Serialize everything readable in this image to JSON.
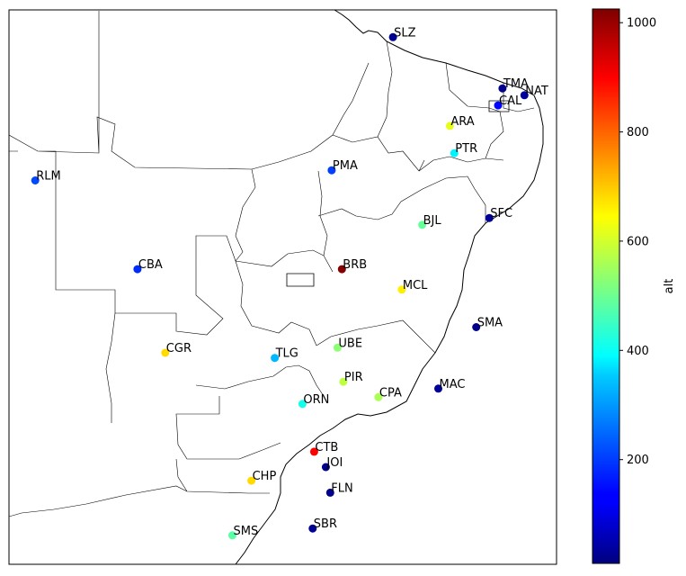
{
  "chart_data": {
    "type": "scatter",
    "title": "",
    "xlabel": "",
    "ylabel": "",
    "xlim": [
      -70.5,
      -33.0
    ],
    "ylim": [
      -33.5,
      -1.0
    ],
    "grid": false,
    "points": [
      {
        "label": "SLZ",
        "lon": -44.2,
        "lat": -2.6,
        "alt": 30
      },
      {
        "label": "TMA",
        "lon": -36.7,
        "lat": -5.6,
        "alt": 20
      },
      {
        "label": "NAT",
        "lon": -35.2,
        "lat": -6.0,
        "alt": 40
      },
      {
        "label": "CAL",
        "lon": -37.0,
        "lat": -6.6,
        "alt": 140
      },
      {
        "label": "ARA",
        "lon": -40.3,
        "lat": -7.8,
        "alt": 620
      },
      {
        "label": "PTR",
        "lon": -40.0,
        "lat": -9.4,
        "alt": 380
      },
      {
        "label": "PMA",
        "lon": -48.4,
        "lat": -10.4,
        "alt": 200
      },
      {
        "label": "RLM",
        "lon": -68.7,
        "lat": -11.0,
        "alt": 210
      },
      {
        "label": "SFC",
        "lon": -37.6,
        "lat": -13.2,
        "alt": 30
      },
      {
        "label": "BJL",
        "lon": -42.2,
        "lat": -13.6,
        "alt": 490
      },
      {
        "label": "CBA",
        "lon": -61.7,
        "lat": -16.2,
        "alt": 180
      },
      {
        "label": "BRB",
        "lon": -47.7,
        "lat": -16.2,
        "alt": 1020
      },
      {
        "label": "MCL",
        "lon": -43.6,
        "lat": -17.4,
        "alt": 660
      },
      {
        "label": "SMA",
        "lon": -38.5,
        "lat": -19.6,
        "alt": 20
      },
      {
        "label": "UBE",
        "lon": -48.0,
        "lat": -20.8,
        "alt": 530
      },
      {
        "label": "CGR",
        "lon": -59.8,
        "lat": -21.1,
        "alt": 680
      },
      {
        "label": "TLG",
        "lon": -52.3,
        "lat": -21.4,
        "alt": 320
      },
      {
        "label": "PIR",
        "lon": -47.6,
        "lat": -22.8,
        "alt": 580
      },
      {
        "label": "MAC",
        "lon": -41.1,
        "lat": -23.2,
        "alt": 30
      },
      {
        "label": "CPA",
        "lon": -45.2,
        "lat": -23.7,
        "alt": 560
      },
      {
        "label": "ORN",
        "lon": -50.4,
        "lat": -24.1,
        "alt": 410
      },
      {
        "label": "CTB",
        "lon": -49.6,
        "lat": -26.9,
        "alt": 900
      },
      {
        "label": "JOI",
        "lon": -48.8,
        "lat": -27.8,
        "alt": 20
      },
      {
        "label": "CHP",
        "lon": -53.9,
        "lat": -28.6,
        "alt": 680
      },
      {
        "label": "FLN",
        "lon": -48.5,
        "lat": -29.3,
        "alt": 20
      },
      {
        "label": "SBR",
        "lon": -49.7,
        "lat": -31.4,
        "alt": 30
      },
      {
        "label": "SMS",
        "lon": -55.2,
        "lat": -31.8,
        "alt": 480
      }
    ],
    "colorbar": {
      "label": "alt",
      "colormap": "jet",
      "min": 10,
      "max": 1025,
      "ticks": [
        200,
        400,
        600,
        800,
        1000
      ],
      "tick_labels": [
        "200",
        "400",
        "600",
        "800",
        "1000"
      ]
    }
  }
}
